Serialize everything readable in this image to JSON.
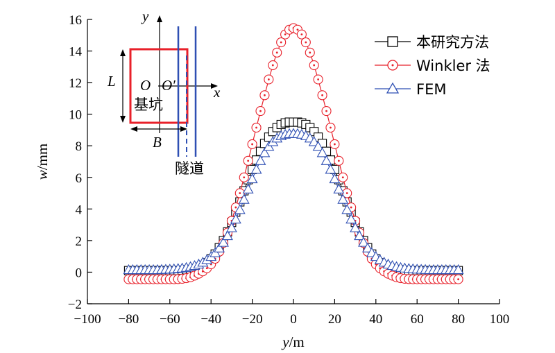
{
  "chart_data": {
    "type": "scatter",
    "xlabel_var": "y",
    "xlabel_unit": "/m",
    "ylabel_var": "w",
    "ylabel_unit": "/mm",
    "xlim": [
      -100,
      100
    ],
    "ylim": [
      -2,
      16
    ],
    "xticks": [
      "−100",
      "−80",
      "−60",
      "−40",
      "−20",
      "0",
      "20",
      "40",
      "60",
      "80",
      "100"
    ],
    "yticks": [
      "−2",
      "0",
      "2",
      "4",
      "6",
      "8",
      "10",
      "12",
      "14",
      "16"
    ],
    "grid": false,
    "legend_position": "top-right",
    "x": [
      -80,
      -78,
      -76,
      -74,
      -72,
      -70,
      -68,
      -66,
      -64,
      -62,
      -60,
      -58,
      -56,
      -54,
      -52,
      -50,
      -48,
      -46,
      -44,
      -42,
      -40,
      -38,
      -36,
      -34,
      -32,
      -30,
      -28,
      -26,
      -24,
      -22,
      -20,
      -18,
      -16,
      -14,
      -12,
      -10,
      -8,
      -6,
      -4,
      -2,
      0,
      2,
      4,
      6,
      8,
      10,
      12,
      14,
      16,
      18,
      20,
      22,
      24,
      26,
      28,
      30,
      32,
      34,
      36,
      38,
      40,
      42,
      44,
      46,
      48,
      50,
      52,
      54,
      56,
      58,
      60,
      62,
      64,
      66,
      68,
      70,
      72,
      74,
      76,
      78,
      80
    ],
    "series": [
      {
        "name": "本研究方法",
        "color": "#000000",
        "marker": "square",
        "values": [
          0.1,
          0.1,
          0.1,
          0.1,
          0.1,
          0.1,
          0.1,
          0.1,
          0.1,
          0.1,
          0.1,
          0.1,
          0.1,
          0.12,
          0.15,
          0.18,
          0.23,
          0.3,
          0.42,
          0.6,
          0.85,
          1.15,
          1.55,
          2.0,
          2.55,
          3.15,
          3.8,
          4.45,
          5.15,
          5.85,
          6.5,
          7.1,
          7.65,
          8.15,
          8.55,
          8.9,
          9.15,
          9.35,
          9.45,
          9.5,
          9.5,
          9.5,
          9.45,
          9.35,
          9.15,
          8.9,
          8.55,
          8.15,
          7.65,
          7.1,
          6.5,
          5.85,
          5.15,
          4.45,
          3.8,
          3.15,
          2.55,
          2.0,
          1.55,
          1.15,
          0.85,
          0.6,
          0.42,
          0.3,
          0.23,
          0.18,
          0.15,
          0.12,
          0.1,
          0.1,
          0.1,
          0.1,
          0.1,
          0.1,
          0.1,
          0.1,
          0.1,
          0.1,
          0.1,
          0.1,
          0.1
        ]
      },
      {
        "name": "Winkler 法",
        "color": "#e8202a",
        "marker": "circle",
        "values": [
          -0.45,
          -0.45,
          -0.45,
          -0.45,
          -0.45,
          -0.45,
          -0.45,
          -0.45,
          -0.45,
          -0.45,
          -0.45,
          -0.45,
          -0.44,
          -0.42,
          -0.38,
          -0.32,
          -0.22,
          -0.1,
          0.05,
          0.25,
          0.5,
          0.85,
          1.3,
          1.85,
          2.5,
          3.25,
          4.1,
          5.0,
          6.0,
          7.05,
          8.1,
          9.15,
          10.2,
          11.2,
          12.2,
          13.1,
          13.9,
          14.55,
          15.05,
          15.35,
          15.45,
          15.35,
          15.05,
          14.55,
          13.9,
          13.1,
          12.2,
          11.2,
          10.2,
          9.15,
          8.1,
          7.05,
          6.0,
          5.0,
          4.1,
          3.25,
          2.5,
          1.85,
          1.3,
          0.85,
          0.5,
          0.25,
          0.05,
          -0.1,
          -0.22,
          -0.32,
          -0.38,
          -0.42,
          -0.44,
          -0.45,
          -0.45,
          -0.45,
          -0.45,
          -0.45,
          -0.45,
          -0.45,
          -0.45,
          -0.45,
          -0.45,
          -0.45,
          -0.45
        ]
      },
      {
        "name": "FEM",
        "color": "#2e4fb3",
        "marker": "triangle",
        "values": [
          0.15,
          0.15,
          0.15,
          0.15,
          0.15,
          0.15,
          0.15,
          0.15,
          0.16,
          0.17,
          0.18,
          0.2,
          0.22,
          0.25,
          0.29,
          0.34,
          0.41,
          0.5,
          0.62,
          0.78,
          0.98,
          1.22,
          1.52,
          1.88,
          2.3,
          2.8,
          3.35,
          3.95,
          4.6,
          5.25,
          5.9,
          6.5,
          7.05,
          7.55,
          7.95,
          8.25,
          8.48,
          8.63,
          8.72,
          8.76,
          8.77,
          8.76,
          8.72,
          8.63,
          8.48,
          8.25,
          7.95,
          7.55,
          7.05,
          6.5,
          5.9,
          5.25,
          4.6,
          3.95,
          3.35,
          2.8,
          2.3,
          1.88,
          1.52,
          1.22,
          0.98,
          0.78,
          0.62,
          0.5,
          0.41,
          0.34,
          0.29,
          0.25,
          0.22,
          0.2,
          0.18,
          0.17,
          0.16,
          0.15,
          0.15,
          0.15,
          0.15,
          0.15,
          0.15,
          0.15,
          0.15
        ]
      }
    ]
  },
  "inset": {
    "axis_y": "y",
    "axis_x": "x",
    "origin": "O",
    "origin_prime": "O′",
    "dim_l": "L",
    "dim_b": "B",
    "pit_label": "基坑",
    "tunnel_label": "隧道"
  }
}
